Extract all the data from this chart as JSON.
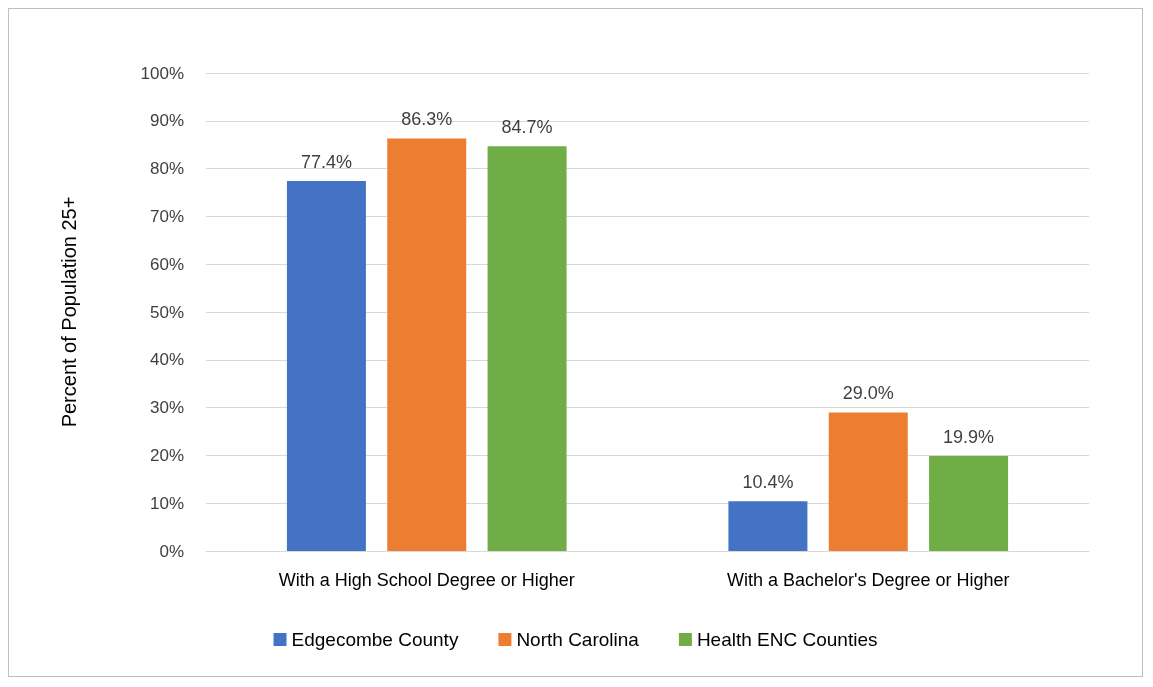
{
  "chart_data": {
    "type": "bar",
    "ylabel": "Percent of Population 25+",
    "categories": [
      "With a High School Degree or Higher",
      "With a Bachelor's Degree or Higher"
    ],
    "series": [
      {
        "name": "Edgecombe County",
        "color": "#4472c4",
        "values": [
          77.4,
          10.4
        ],
        "value_labels": [
          "77.4%",
          "10.4%"
        ]
      },
      {
        "name": "North Carolina",
        "color": "#ed7d31",
        "values": [
          86.3,
          29.0
        ],
        "value_labels": [
          "86.3%",
          "29.0%"
        ]
      },
      {
        "name": "Health ENC Counties",
        "color": "#70ad47",
        "values": [
          84.7,
          19.9
        ],
        "value_labels": [
          "84.7%",
          "19.9%"
        ]
      }
    ],
    "ylim": [
      0,
      100
    ],
    "yticks": [
      {
        "value": 0,
        "label": "0%"
      },
      {
        "value": 10,
        "label": "10%"
      },
      {
        "value": 20,
        "label": "20%"
      },
      {
        "value": 30,
        "label": "30%"
      },
      {
        "value": 40,
        "label": "40%"
      },
      {
        "value": 50,
        "label": "50%"
      },
      {
        "value": 60,
        "label": "60%"
      },
      {
        "value": 70,
        "label": "70%"
      },
      {
        "value": 80,
        "label": "80%"
      },
      {
        "value": 90,
        "label": "90%"
      },
      {
        "value": 100,
        "label": "100%"
      }
    ],
    "grid": "y",
    "legend": "bottom"
  }
}
